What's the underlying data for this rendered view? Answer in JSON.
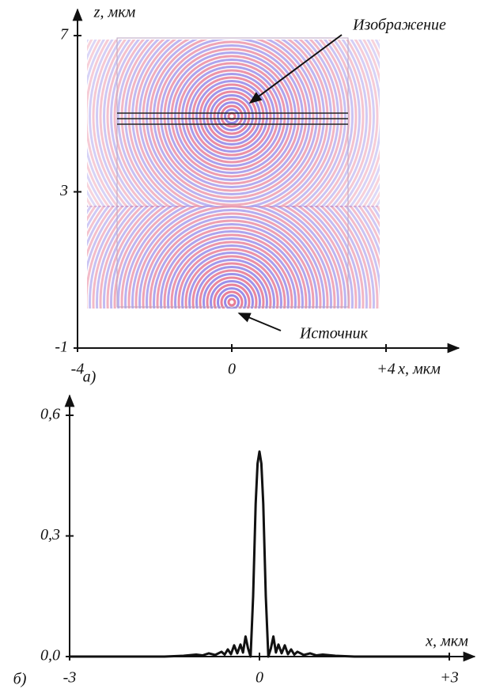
{
  "chart_data": [
    {
      "type": "image",
      "xlabel": "x, мкм",
      "ylabel": "z, мкм",
      "panel": "а)",
      "xlim": [
        -4,
        4
      ],
      "xticks": [
        -4,
        0,
        {
          "value": 4,
          "label": "+4"
        }
      ],
      "ylim": [
        -1,
        7
      ],
      "yticks": [
        7,
        3,
        -1
      ],
      "annotations": [
        "Изображение",
        "Источник"
      ]
    },
    {
      "type": "line",
      "xlabel": "x, мкм",
      "panel": "б)",
      "xlim": [
        -3,
        3
      ],
      "xticks": [
        -3,
        0,
        {
          "value": 3,
          "label": "+3"
        }
      ],
      "ylim": [
        0,
        0.6
      ],
      "yticks": [
        {
          "value": 0,
          "label": "0,0"
        },
        {
          "value": 0.3,
          "label": "0,3"
        },
        {
          "value": 0.6,
          "label": "0,6"
        }
      ],
      "color": "#111",
      "x": [
        -3,
        -2,
        -1.5,
        -1.2,
        -1,
        -0.9,
        -0.8,
        -0.7,
        -0.6,
        -0.55,
        -0.5,
        -0.45,
        -0.4,
        -0.35,
        -0.3,
        -0.26,
        -0.22,
        -0.18,
        -0.14,
        -0.1,
        -0.06,
        -0.03,
        0,
        0.03,
        0.06,
        0.1,
        0.14,
        0.18,
        0.22,
        0.26,
        0.3,
        0.35,
        0.4,
        0.45,
        0.5,
        0.55,
        0.6,
        0.7,
        0.8,
        0.9,
        1,
        1.2,
        1.5,
        2,
        3
      ],
      "values": [
        0,
        0,
        0,
        0.002,
        0.005,
        0.003,
        0.008,
        0.004,
        0.012,
        0.005,
        0.018,
        0.006,
        0.028,
        0.008,
        0.03,
        0.01,
        0.05,
        0.02,
        0,
        0.15,
        0.38,
        0.48,
        0.51,
        0.48,
        0.38,
        0.15,
        0,
        0.02,
        0.05,
        0.01,
        0.03,
        0.008,
        0.028,
        0.006,
        0.018,
        0.005,
        0.012,
        0.004,
        0.008,
        0.003,
        0.005,
        0.002,
        0,
        0,
        0
      ]
    }
  ]
}
